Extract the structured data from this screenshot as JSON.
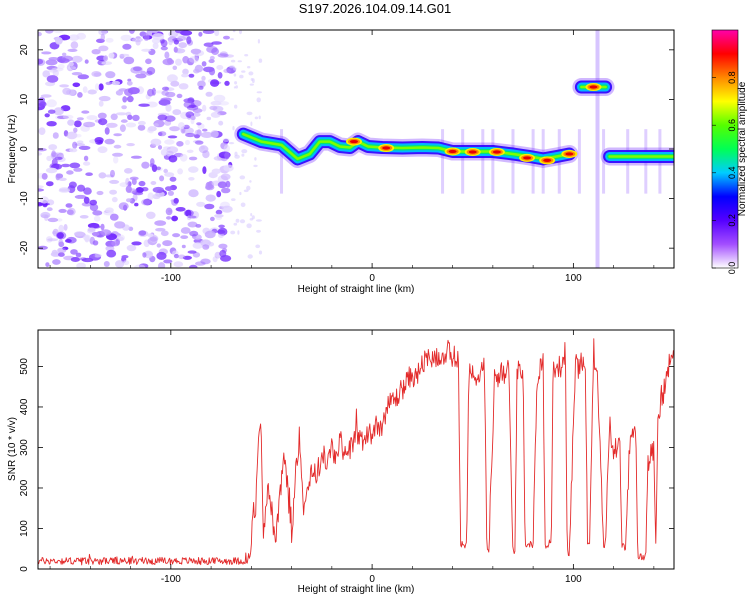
{
  "title": "S197.2026.104.09.14.G01",
  "chart_data": [
    {
      "type": "heatmap",
      "name": "spectrogram",
      "xlabel": "Height of straight line (km)",
      "ylabel": "Frequency (Hz)",
      "xlim": [
        -166,
        150
      ],
      "ylim": [
        -24,
        24
      ],
      "xticks": [
        -100,
        0,
        100
      ],
      "yticks": [
        -20,
        -10,
        0,
        10,
        20
      ],
      "noise_region_x": [
        -166,
        -70
      ],
      "trace": [
        {
          "x": -64,
          "y": 3
        },
        {
          "x": -55,
          "y": 1.5
        },
        {
          "x": -45,
          "y": 0.8
        },
        {
          "x": -37,
          "y": -2
        },
        {
          "x": -31,
          "y": -1
        },
        {
          "x": -26,
          "y": 1.5
        },
        {
          "x": -21,
          "y": 1.5
        },
        {
          "x": -16,
          "y": 0.5
        },
        {
          "x": -11,
          "y": 0.3
        },
        {
          "x": -7,
          "y": 1.5
        },
        {
          "x": -2,
          "y": 0.5
        },
        {
          "x": 5,
          "y": 0.3
        },
        {
          "x": 15,
          "y": 0.2
        },
        {
          "x": 25,
          "y": 0.3
        },
        {
          "x": 33,
          "y": 0.2
        },
        {
          "x": 40,
          "y": -0.5
        },
        {
          "x": 50,
          "y": -0.5
        },
        {
          "x": 60,
          "y": -0.5
        },
        {
          "x": 70,
          "y": -1
        },
        {
          "x": 78,
          "y": -1.5
        },
        {
          "x": 85,
          "y": -2
        },
        {
          "x": 92,
          "y": -1.5
        },
        {
          "x": 98,
          "y": -1
        }
      ],
      "hot_spots": [
        {
          "x": -9,
          "y": 1.5
        },
        {
          "x": 7,
          "y": 0.2
        },
        {
          "x": 40,
          "y": -0.5
        },
        {
          "x": 50,
          "y": -0.6
        },
        {
          "x": 62,
          "y": -0.6
        },
        {
          "x": 77,
          "y": -1.8
        },
        {
          "x": 87,
          "y": -2.3
        },
        {
          "x": 98,
          "y": -1
        },
        {
          "x": 110,
          "y": 12.5
        }
      ],
      "side_tone": {
        "x_start": 104,
        "x_end": 116,
        "y": 12.5
      },
      "late_segment": {
        "x_start": 118,
        "x_end": 150,
        "y": -1.5
      },
      "streaks": [
        -45,
        35,
        45,
        55,
        60,
        70,
        80,
        85,
        93,
        103,
        115,
        127,
        136,
        143
      ],
      "colorbar": {
        "label": "Normalized spectral amplitude",
        "range": [
          0.0,
          1.0
        ],
        "ticks": [
          0.0,
          0.2,
          0.4,
          0.6,
          0.8
        ],
        "tick_labels": [
          "0.0",
          "0.2",
          "0.4",
          "0.6",
          "0.8"
        ],
        "colors": [
          "#ffffff",
          "#a34eff",
          "#5500ff",
          "#0000ff",
          "#00ccff",
          "#00ff55",
          "#55ff00",
          "#ffff00",
          "#ff8800",
          "#ff0000",
          "#ff00aa"
        ]
      }
    },
    {
      "type": "line",
      "name": "snr",
      "xlabel": "Height of straight line (km)",
      "ylabel": "SNR (10 * v/v)",
      "xlim": [
        -166,
        150
      ],
      "ylim": [
        0,
        590
      ],
      "xticks": [
        -100,
        0,
        100
      ],
      "yticks": [
        0,
        100,
        200,
        300,
        400,
        500
      ],
      "color": "#e32b2b",
      "series": [
        {
          "name": "SNR",
          "x": [
            -166,
            -62,
            -60,
            -59,
            -58,
            -57,
            -56,
            -55,
            -54,
            -52,
            -50,
            -48,
            -46,
            -44,
            -42,
            -40,
            -38,
            -36,
            -34,
            -32,
            -30,
            -28,
            -26,
            -24,
            -22,
            -20,
            -18,
            -16,
            -14,
            -12,
            -10,
            -8,
            -6,
            -4,
            -2,
            0,
            2,
            4,
            6,
            8,
            10,
            12,
            14,
            16,
            18,
            20,
            22,
            24,
            26,
            28,
            30,
            32,
            34,
            36,
            38,
            40,
            42,
            43,
            44,
            47,
            48,
            50,
            52,
            54,
            56,
            57,
            58,
            61,
            62,
            65,
            66,
            68,
            70,
            71,
            72,
            75,
            76,
            80,
            82,
            84,
            85,
            86,
            89,
            90,
            94,
            96,
            97,
            98,
            101,
            102,
            106,
            107,
            108,
            110,
            111,
            112,
            115,
            116,
            118,
            119,
            120,
            123,
            124,
            126,
            128,
            130,
            131,
            132,
            136,
            137,
            138,
            140,
            141,
            142,
            144,
            146,
            148,
            150
          ],
          "values": [
            20,
            20,
            50,
            170,
            120,
            260,
            370,
            330,
            90,
            200,
            150,
            60,
            160,
            280,
            200,
            60,
            250,
            330,
            150,
            200,
            250,
            230,
            260,
            280,
            260,
            300,
            270,
            320,
            290,
            300,
            300,
            330,
            330,
            300,
            340,
            330,
            370,
            340,
            380,
            400,
            420,
            420,
            440,
            450,
            470,
            480,
            470,
            500,
            510,
            520,
            500,
            520,
            530,
            520,
            540,
            500,
            520,
            500,
            60,
            60,
            490,
            500,
            470,
            490,
            470,
            50,
            50,
            500,
            470,
            490,
            470,
            500,
            40,
            40,
            490,
            500,
            60,
            60,
            480,
            500,
            510,
            60,
            60,
            500,
            500,
            540,
            40,
            40,
            510,
            500,
            520,
            60,
            60,
            530,
            500,
            470,
            60,
            60,
            380,
            300,
            280,
            330,
            60,
            50,
            310,
            340,
            320,
            30,
            30,
            260,
            280,
            300,
            60,
            380,
            420,
            460,
            520,
            560
          ]
        }
      ]
    }
  ]
}
